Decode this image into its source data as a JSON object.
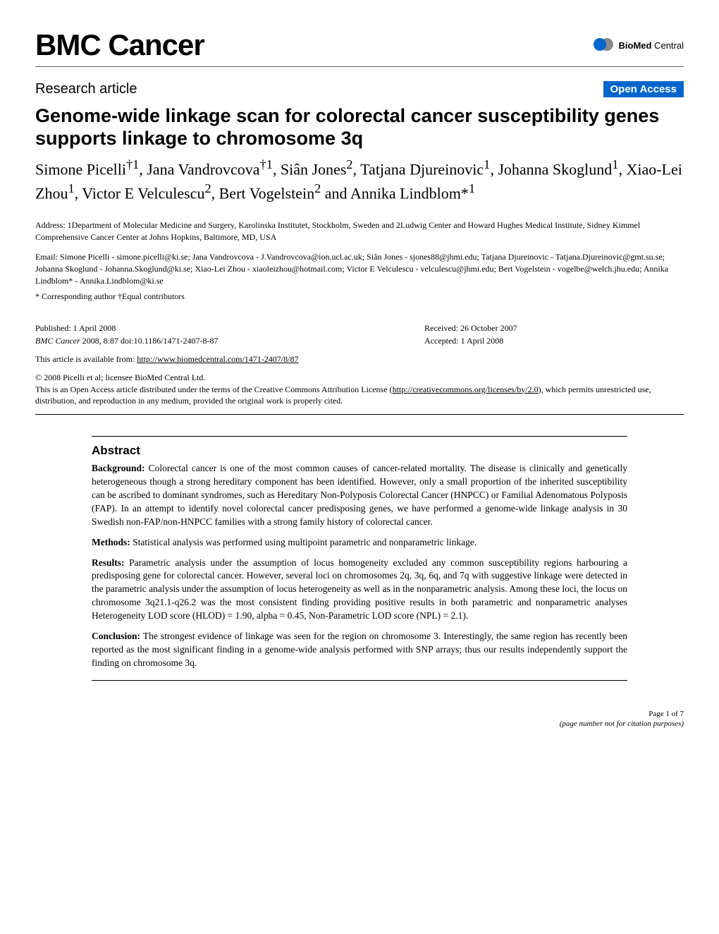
{
  "journal": "BMC Cancer",
  "publisher": {
    "name_bold": "BioMed",
    "name_rest": " Central"
  },
  "article_type": "Research article",
  "open_access_badge": "Open Access",
  "title": "Genome-wide linkage scan for colorectal cancer susceptibility genes supports linkage to chromosome 3q",
  "authors_html": "Simone Picelli†1, Jana Vandrovcova†1, Siân Jones2, Tatjana Djureinovic1, Johanna Skoglund1, Xiao-Lei Zhou1, Victor E Velculescu2, Bert Vogelstein2 and Annika Lindblom*1",
  "address": "Address: 1Department of Molecular Medicine and Surgery, Karolinska Institutet, Stockholm, Sweden and 2Ludwig Center and Howard Hughes Medical Institute, Sidney Kimmel Comprehensive Cancer Center at Johns Hopkins, Baltimore, MD, USA",
  "emails": "Email: Simone Picelli - simone.picelli@ki.se; Jana Vandrovcova - J.Vandrovcova@ion.ucl.ac.uk; Siân Jones - sjones88@jhmi.edu; Tatjana Djureinovic - Tatjana.Djureinovic@gmt.su.se; Johanna Skoglund - Johanna.Skoglund@ki.se; Xiao-Lei Zhou - xiaoleizhou@hotmail.com; Victor E Velculescu - velculescu@jhmi.edu; Bert Vogelstein - vogelbe@welch.jhu.edu; Annika Lindblom* - Annika.Lindblom@ki.se",
  "author_notes": "* Corresponding author    †Equal contributors",
  "pub": {
    "published": "Published: 1 April 2008",
    "citation_journal": "BMC Cancer",
    "citation_rest": " 2008, 8:87    doi:10.1186/1471-2407-8-87",
    "received": "Received: 26 October 2007",
    "accepted": "Accepted: 1 April 2008",
    "available_prefix": "This article is available from: ",
    "available_url": "http://www.biomedcentral.com/1471-2407/8/87"
  },
  "copyright": {
    "line1": "© 2008 Picelli et al; licensee BioMed Central Ltd.",
    "line2_prefix": "This is an Open Access article distributed under the terms of the Creative Commons Attribution License (",
    "line2_url": "http://creativecommons.org/licenses/by/2.0",
    "line2_suffix": "), which permits unrestricted use, distribution, and reproduction in any medium, provided the original work is properly cited."
  },
  "abstract": {
    "heading": "Abstract",
    "sections": [
      {
        "label": "Background:",
        "text": " Colorectal cancer is one of the most common causes of cancer-related mortality. The disease is clinically and genetically heterogeneous though a strong hereditary component has been identified. However, only a small proportion of the inherited susceptibility can be ascribed to dominant syndromes, such as Hereditary Non-Polyposis Colorectal Cancer (HNPCC) or Familial Adenomatous Polyposis (FAP). In an attempt to identify novel colorectal cancer predisposing genes, we have performed a genome-wide linkage analysis in 30 Swedish non-FAP/non-HNPCC families with a strong family history of colorectal cancer."
      },
      {
        "label": "Methods:",
        "text": " Statistical analysis was performed using multipoint parametric and nonparametric linkage."
      },
      {
        "label": "Results:",
        "text": " Parametric analysis under the assumption of locus homogeneity excluded any common susceptibility regions harbouring a predisposing gene for colorectal cancer. However, several loci on chromosomes 2q, 3q, 6q, and 7q with suggestive linkage were detected in the parametric analysis under the assumption of locus heterogeneity as well as in the nonparametric analysis. Among these loci, the locus on chromosome 3q21.1-q26.2 was the most consistent finding providing positive results in both parametric and nonparametric analyses Heterogeneity LOD score (HLOD) = 1.90, alpha = 0.45, Non-Parametric LOD score (NPL) = 2.1)."
      },
      {
        "label": "Conclusion:",
        "text": " The strongest evidence of linkage was seen for the region on chromosome 3. Interestingly, the same region has recently been reported as the most significant finding in a genome-wide analysis performed with SNP arrays; thus our results independently support the finding on chromosome 3q."
      }
    ]
  },
  "footer": {
    "page": "Page 1 of 7",
    "note": "(page number not for citation purposes)"
  },
  "colors": {
    "open_access_bg": "#0066cc",
    "circle_blue": "#0066cc",
    "circle_grey": "#888888"
  }
}
